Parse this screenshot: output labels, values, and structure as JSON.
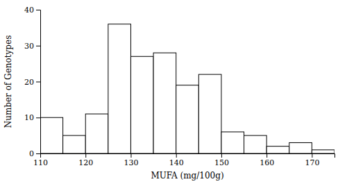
{
  "chart_data": {
    "type": "histogram",
    "bins": [
      110,
      115,
      120,
      125,
      130,
      135,
      140,
      145,
      150,
      155,
      160,
      165,
      170,
      175
    ],
    "values": [
      10,
      5,
      11,
      36,
      27,
      28,
      19,
      22,
      6,
      5,
      2,
      3,
      1
    ],
    "color": "#ffffff",
    "xlim": [
      110,
      175
    ],
    "ylim": [
      0,
      40
    ],
    "xticks": [
      110,
      120,
      130,
      140,
      150,
      160,
      170
    ],
    "yticks": [
      0,
      10,
      20,
      30,
      40
    ],
    "xlabel": "MUFA (mg/100g)",
    "ylabel": "Number of Genotypes"
  }
}
